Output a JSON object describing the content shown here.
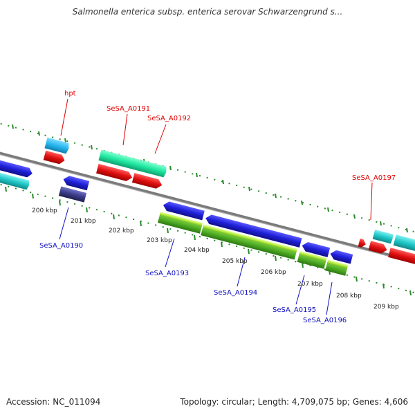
{
  "title": "Salmonella enterica subsp. enterica serovar Schwarzengrund s...",
  "footer": {
    "accession": "Accession: NC_011094",
    "summary": "Topology: circular; Length: 4,709,075 bp; Genes: 4,606"
  },
  "colors": {
    "backbone": "#888888",
    "tick": "#2a8a2a",
    "label_red": "#e00000",
    "label_blue": "#1010c0",
    "gene_blue": "#1f1fd8",
    "gene_red": "#e01010",
    "gene_cyan": "#20c8c8",
    "gene_sky": "#28b8f0",
    "gene_mint": "#20e8a0",
    "gene_green": "#5ab82a",
    "gene_lime": "#b4f040",
    "gene_navy": "#3c3c8c"
  },
  "scale_labels": [
    "200 kbp",
    "201 kbp",
    "202 kbp",
    "203 kbp",
    "204 kbp",
    "205 kbp",
    "206 kbp",
    "207 kbp",
    "208 kbp",
    "209 kbp"
  ],
  "gene_labels": {
    "hpt": "hpt",
    "a0191": "SeSA_A0191",
    "a0192": "SeSA_A0192",
    "a0197": "SeSA_A0197",
    "a0190": "SeSA_A0190",
    "a0193": "SeSA_A0193",
    "a0194": "SeSA_A0194",
    "a0195": "SeSA_A0195",
    "a0196": "SeSA_A0196"
  }
}
